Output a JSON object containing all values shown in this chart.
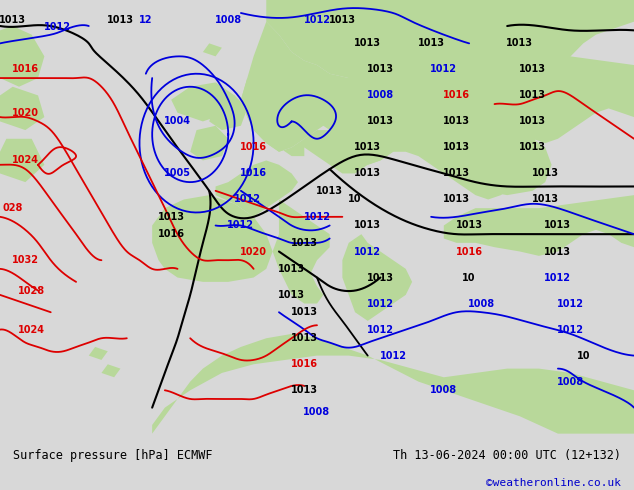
{
  "title_left": "Surface pressure [hPa] ECMWF",
  "title_right": "Th 13-06-2024 00:00 UTC (12+132)",
  "credit": "©weatheronline.co.uk",
  "bg_color_land": "#b8d89a",
  "bg_color_sea": "#e8e8e8",
  "bg_color_bottom": "#d8d8d8",
  "text_color_credit": "#0000cc",
  "contour_colors": {
    "black": "#000000",
    "blue": "#0000dd",
    "red": "#dd0000"
  },
  "figsize": [
    6.34,
    4.9
  ],
  "dpi": 100
}
